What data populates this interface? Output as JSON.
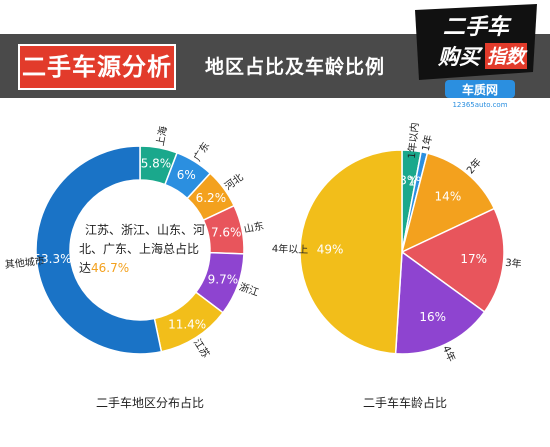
{
  "header": {
    "title": "二手车源分析",
    "subtitle": "地区占比及车龄比例"
  },
  "logo": {
    "line1": "二手车",
    "line2_a": "购买",
    "line2_b": "指数",
    "badge": "车质网",
    "url": "12365auto.com"
  },
  "colors": {
    "blue": "#1a73c6",
    "yellow": "#f2be1a",
    "purple": "#8e44d0",
    "red": "#e8555c",
    "orange": "#f3a11e",
    "blue_light": "#2b8fe0",
    "teal": "#1aa88c",
    "header_bg": "#4a4a4a",
    "accent": "#e23b2b"
  },
  "chart_data": [
    {
      "type": "pie",
      "variant": "donut",
      "caption": "二手车地区分布占比",
      "center_label_lines": [
        "江苏、浙江、山东、河",
        "北、广东、上海总占比",
        "达"
      ],
      "center_value": "46.7%",
      "slices": [
        {
          "label": "上海",
          "value": 5.8,
          "value_label": "5.8%",
          "color": "#1aa88c"
        },
        {
          "label": "广东",
          "value": 6,
          "value_label": "6%",
          "color": "#2b8fe0"
        },
        {
          "label": "河北",
          "value": 6.2,
          "value_label": "6.2%",
          "color": "#f3a11e"
        },
        {
          "label": "山东",
          "value": 7.6,
          "value_label": "7.6%",
          "color": "#e8555c"
        },
        {
          "label": "浙江",
          "value": 9.7,
          "value_label": "9.7%",
          "color": "#8e44d0"
        },
        {
          "label": "江苏",
          "value": 11.4,
          "value_label": "11.4%",
          "color": "#f2be1a"
        },
        {
          "label": "其他城市",
          "value": 53.3,
          "value_label": "53.3%",
          "color": "#1a73c6"
        }
      ]
    },
    {
      "type": "pie",
      "caption": "二手车车龄占比",
      "slices": [
        {
          "label": "1年以内",
          "value": 3,
          "value_label": "3%",
          "color": "#1aa88c"
        },
        {
          "label": "1年",
          "value": 1,
          "value_label": "1%",
          "color": "#2b8fe0"
        },
        {
          "label": "2年",
          "value": 14,
          "value_label": "14%",
          "color": "#f3a11e"
        },
        {
          "label": "3年",
          "value": 17,
          "value_label": "17%",
          "color": "#e8555c"
        },
        {
          "label": "4年",
          "value": 16,
          "value_label": "16%",
          "color": "#8e44d0"
        },
        {
          "label": "4年以上",
          "value": 49,
          "value_label": "49%",
          "color": "#f2be1a"
        }
      ]
    }
  ]
}
